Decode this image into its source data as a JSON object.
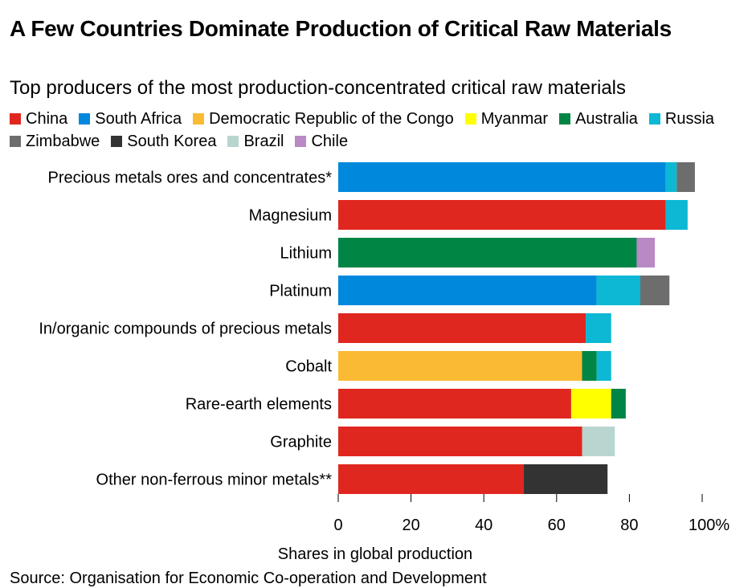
{
  "title": "A Few Countries Dominate Production of Critical Raw Materials",
  "subtitle": "Top producers of the most production-concentrated critical raw materials",
  "source": "Source: Organisation for Economic Co-operation and Development",
  "legend": [
    {
      "name": "China",
      "color": "#e0271f"
    },
    {
      "name": "South Africa",
      "color": "#0088dd"
    },
    {
      "name": "Democratic Republic of the Congo",
      "color": "#fbba33"
    },
    {
      "name": "Myanmar",
      "color": "#ffff00"
    },
    {
      "name": "Australia",
      "color": "#008545"
    },
    {
      "name": "Russia",
      "color": "#0cb8d4"
    },
    {
      "name": "Zimbabwe",
      "color": "#6d6d6d"
    },
    {
      "name": "South Korea",
      "color": "#333333"
    },
    {
      "name": "Brazil",
      "color": "#b9d5cf"
    },
    {
      "name": "Chile",
      "color": "#b889c5"
    }
  ],
  "chart_data": {
    "type": "bar",
    "orientation": "horizontal",
    "stacked": true,
    "title": "A Few Countries Dominate Production of Critical Raw Materials",
    "subtitle": "Top producers of the most production-concentrated critical raw materials",
    "xlabel": "Shares in global production",
    "ylabel": "",
    "xlim": [
      0,
      100
    ],
    "xticks": [
      0,
      20,
      40,
      60,
      80,
      100
    ],
    "xtick_labels": [
      "0",
      "20",
      "40",
      "60",
      "80",
      "100%"
    ],
    "grid": false,
    "legend_position": "top",
    "categories": [
      {
        "label": "Precious metals ores and concentrates*",
        "segments": [
          {
            "country": "South Africa",
            "value": 90
          },
          {
            "country": "Russia",
            "value": 3
          },
          {
            "country": "Zimbabwe",
            "value": 5
          }
        ]
      },
      {
        "label": "Magnesium",
        "segments": [
          {
            "country": "China",
            "value": 90
          },
          {
            "country": "Russia",
            "value": 6
          }
        ]
      },
      {
        "label": "Lithium",
        "segments": [
          {
            "country": "Australia",
            "value": 82
          },
          {
            "country": "Chile",
            "value": 5
          }
        ]
      },
      {
        "label": "Platinum",
        "segments": [
          {
            "country": "South Africa",
            "value": 71
          },
          {
            "country": "Russia",
            "value": 12
          },
          {
            "country": "Zimbabwe",
            "value": 8
          }
        ]
      },
      {
        "label": "In/organic compounds of precious metals",
        "segments": [
          {
            "country": "China",
            "value": 68
          },
          {
            "country": "Russia",
            "value": 7
          }
        ]
      },
      {
        "label": "Cobalt",
        "segments": [
          {
            "country": "Democratic Republic of the Congo",
            "value": 67
          },
          {
            "country": "Australia",
            "value": 4
          },
          {
            "country": "Russia",
            "value": 4
          }
        ]
      },
      {
        "label": "Rare-earth elements",
        "segments": [
          {
            "country": "China",
            "value": 64
          },
          {
            "country": "Myanmar",
            "value": 11
          },
          {
            "country": "Australia",
            "value": 4
          }
        ]
      },
      {
        "label": "Graphite",
        "segments": [
          {
            "country": "China",
            "value": 67
          },
          {
            "country": "Brazil",
            "value": 9
          }
        ]
      },
      {
        "label": "Other non-ferrous minor metals**",
        "segments": [
          {
            "country": "China",
            "value": 51
          },
          {
            "country": "South Korea",
            "value": 23
          }
        ]
      }
    ]
  }
}
